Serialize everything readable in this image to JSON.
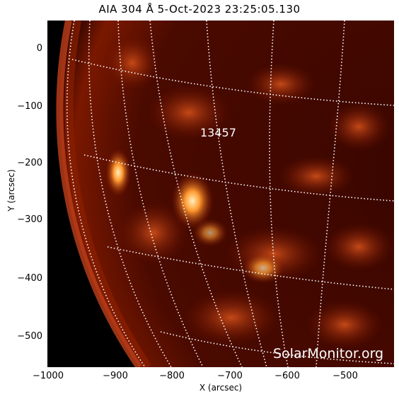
{
  "header": {
    "title": "AIA 304 Å  5-Oct-2023 23:25:05.130"
  },
  "axes": {
    "xlabel": "X (arcsec)",
    "ylabel": "Y (arcsec)",
    "xticks": [
      "−1000",
      "−900",
      "−800",
      "−700",
      "−600",
      "−500"
    ],
    "yticks": [
      "0",
      "−100",
      "−200",
      "−300",
      "−400",
      "−500"
    ]
  },
  "overlay": {
    "active_region": "13457",
    "watermark": "SolarMonitor.org"
  },
  "colors": {
    "plasma_dark": "#1a0200",
    "plasma_mid": "#8a1a00",
    "plasma_bright": "#ff9a30",
    "grid": "#ffffff"
  }
}
